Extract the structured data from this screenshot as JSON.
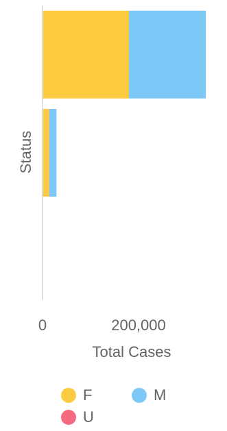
{
  "chart_data": {
    "type": "bar",
    "orientation": "horizontal",
    "stacked": true,
    "xlabel": "Total Cases",
    "ylabel": "Status",
    "xlim": [
      0,
      340000
    ],
    "x_ticks": [
      0,
      200000
    ],
    "x_tick_labels": [
      "0",
      "200,000"
    ],
    "categories": [
      "",
      "",
      ""
    ],
    "series": [
      {
        "name": "F",
        "color": "#fccb3f",
        "values": [
          180000,
          14000,
          0
        ]
      },
      {
        "name": "M",
        "color": "#7ec8f8",
        "values": [
          160000,
          15000,
          0
        ]
      },
      {
        "name": "U",
        "color": "#f56a7e",
        "values": [
          0,
          0,
          0
        ]
      }
    ],
    "grid": false,
    "legend_position": "bottom"
  }
}
